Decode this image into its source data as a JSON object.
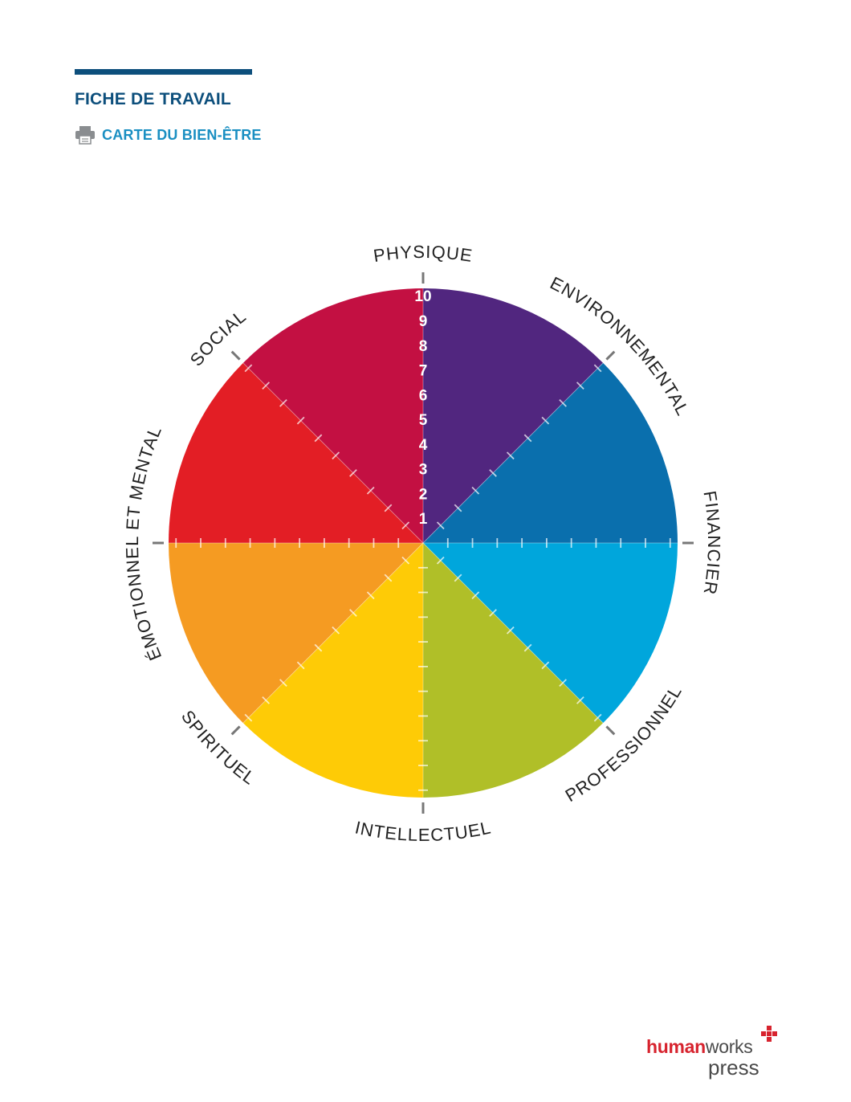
{
  "header": {
    "title": "FICHE DE TRAVAIL",
    "subtitle": "CARTE DU BIEN-ÊTRE",
    "print_icon": "printer-icon",
    "colors": {
      "title": "#0d4f7c",
      "subtitle": "#1a8fc2",
      "rule": "#0d4f7c"
    }
  },
  "wheel": {
    "scale_labels": [
      "1",
      "2",
      "3",
      "4",
      "5",
      "6",
      "7",
      "8",
      "9",
      "10"
    ],
    "segments": [
      {
        "label": "PHYSIQUE",
        "color": "#51267f"
      },
      {
        "label": "ENVIRONNEMENTAL",
        "color": "#0a6fad"
      },
      {
        "label": "FINANCIER",
        "color": "#00a6dc"
      },
      {
        "label": "PROFESSIONNEL",
        "color": "#b0bf28"
      },
      {
        "label": "INTELLECTUEL",
        "color": "#fecb06"
      },
      {
        "label": "SPIRITUEL",
        "color": "#f59b22"
      },
      {
        "label": "ÉMOTIONNEL ET MENTAL",
        "color": "#e31e25"
      },
      {
        "label": "SOCIAL",
        "color": "#c31042"
      }
    ]
  },
  "footer": {
    "logo_human": "human",
    "logo_works": "works",
    "logo_press": "press"
  }
}
